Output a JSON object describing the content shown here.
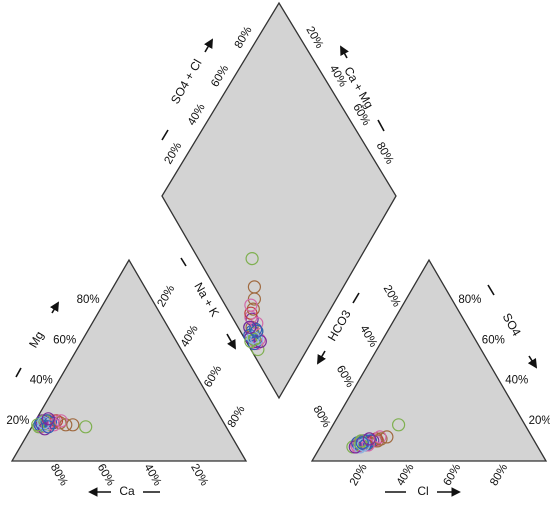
{
  "chart_data": {
    "type": "scatter",
    "title": "",
    "diagram": "piper",
    "colors": {
      "fill": "#d3d3d3",
      "grid": "#333333",
      "series": [
        "#7a2a9a",
        "#2f5fb5",
        "#7fb050",
        "#d36aa8",
        "#a06a40",
        "#c04040",
        "#8fb3e0"
      ]
    },
    "axes": {
      "cation_left": "Mg",
      "cation_bottom": "Ca",
      "cation_right": "Na + K",
      "anion_left": "HCO3",
      "anion_bottom": "Cl",
      "anion_right": "SO4",
      "diamond_left": "SO4 + Cl",
      "diamond_right": "Ca + Mg"
    },
    "ticks": [
      "20%",
      "40%",
      "60%",
      "80%"
    ],
    "samples": [
      {
        "ca": 77,
        "mg": 19,
        "cl": 16,
        "so4": 8,
        "series": 0
      },
      {
        "ca": 78,
        "mg": 18,
        "cl": 17,
        "so4": 8,
        "series": 1
      },
      {
        "ca": 76,
        "mg": 19,
        "cl": 18,
        "so4": 9,
        "series": 2
      },
      {
        "ca": 79,
        "mg": 17,
        "cl": 15,
        "so4": 8,
        "series": 3
      },
      {
        "ca": 75,
        "mg": 20,
        "cl": 19,
        "so4": 9,
        "series": 1
      },
      {
        "ca": 77,
        "mg": 20,
        "cl": 17,
        "so4": 10,
        "series": 0
      },
      {
        "ca": 80,
        "mg": 17,
        "cl": 14,
        "so4": 7,
        "series": 2
      },
      {
        "ca": 74,
        "mg": 20,
        "cl": 20,
        "so4": 9,
        "series": 4
      },
      {
        "ca": 76,
        "mg": 18,
        "cl": 16,
        "so4": 7,
        "series": 3
      },
      {
        "ca": 78,
        "mg": 19,
        "cl": 18,
        "so4": 10,
        "series": 1
      },
      {
        "ca": 73,
        "mg": 19,
        "cl": 21,
        "so4": 10,
        "series": 0
      },
      {
        "ca": 75,
        "mg": 18,
        "cl": 18,
        "so4": 8,
        "series": 2
      },
      {
        "ca": 79,
        "mg": 18,
        "cl": 15,
        "so4": 9,
        "series": 1
      },
      {
        "ca": 72,
        "mg": 20,
        "cl": 22,
        "so4": 10,
        "series": 3
      },
      {
        "ca": 77,
        "mg": 18,
        "cl": 17,
        "so4": 7,
        "series": 6
      },
      {
        "ca": 74,
        "mg": 19,
        "cl": 19,
        "so4": 8,
        "series": 1
      },
      {
        "ca": 70,
        "mg": 19,
        "cl": 23,
        "so4": 10,
        "series": 4
      },
      {
        "ca": 76,
        "mg": 20,
        "cl": 16,
        "so4": 9,
        "series": 2
      },
      {
        "ca": 78,
        "mg": 16,
        "cl": 15,
        "so4": 7,
        "series": 0
      },
      {
        "ca": 71,
        "mg": 20,
        "cl": 22,
        "so4": 11,
        "series": 5
      },
      {
        "ca": 75,
        "mg": 20,
        "cl": 20,
        "so4": 10,
        "series": 1
      },
      {
        "ca": 73,
        "mg": 18,
        "cl": 20,
        "so4": 8,
        "series": 3
      },
      {
        "ca": 80,
        "mg": 18,
        "cl": 16,
        "so4": 10,
        "series": 2
      },
      {
        "ca": 68,
        "mg": 18,
        "cl": 24,
        "so4": 11,
        "series": 4
      },
      {
        "ca": 77,
        "mg": 19,
        "cl": 18,
        "so4": 8,
        "series": 6
      },
      {
        "ca": 69,
        "mg": 20,
        "cl": 23,
        "so4": 12,
        "series": 3
      },
      {
        "ca": 60,
        "mg": 17,
        "cl": 28,
        "so4": 18,
        "series": 2
      },
      {
        "ca": 65,
        "mg": 18,
        "cl": 26,
        "so4": 12,
        "series": 4
      },
      {
        "ca": 76,
        "mg": 17,
        "cl": 17,
        "so4": 9,
        "series": 1
      },
      {
        "ca": 74,
        "mg": 21,
        "cl": 19,
        "so4": 11,
        "series": 0
      }
    ]
  }
}
